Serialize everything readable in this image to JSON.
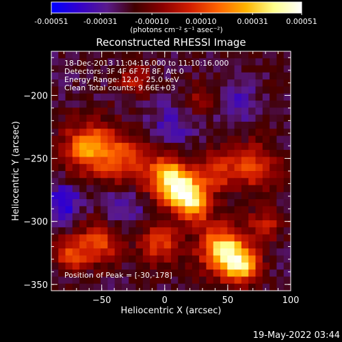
{
  "colorbar": {
    "tick_labels": [
      "-0.00051",
      "-0.00031",
      "-0.00010",
      "0.00010",
      "0.00031",
      "0.00051"
    ],
    "tick_values": [
      -0.00051,
      -0.00031,
      -0.0001,
      0.0001,
      0.00031,
      0.00051
    ],
    "range": [
      -0.00051,
      0.00051
    ],
    "units_label": "(photons cm⁻² s⁻¹ asec⁻²)",
    "stops": [
      "#0000ff",
      "#3300cc",
      "#5a1a8c",
      "#400000",
      "#8b0000",
      "#d21e00",
      "#ff6400",
      "#ffb400",
      "#ffff8c",
      "#ffffff"
    ]
  },
  "title": "Reconstructed RHESSI Image",
  "annotations": [
    "18-Dec-2013 11:04:16.000 to 11:10:16.000",
    "Detectors: 3F 4F 6F 7F 8F, Att 0",
    "Energy Range: 12.0 - 25.0 keV",
    "Clean     Total counts: 9.66E+03"
  ],
  "peak_label": "Position of Peak = [-30,-178]",
  "footer_date": "19-May-2022 03:44",
  "axes": {
    "xlabel": "Heliocentric X (arcsec)",
    "ylabel": "Heliocentric Y (arcsec)",
    "xlim": [
      -90,
      100
    ],
    "ylim": [
      -355,
      -165
    ],
    "xticks": [
      -50,
      0,
      50,
      100
    ],
    "xtick_labels": [
      "−50",
      "0",
      "50",
      "100"
    ],
    "yticks": [
      -200,
      -250,
      -300,
      -350
    ],
    "ytick_labels": [
      "−200",
      "−250",
      "−300",
      "−350"
    ]
  },
  "image_data": {
    "description_note": "",
    "nx": 34,
    "ny": 34
  }
}
